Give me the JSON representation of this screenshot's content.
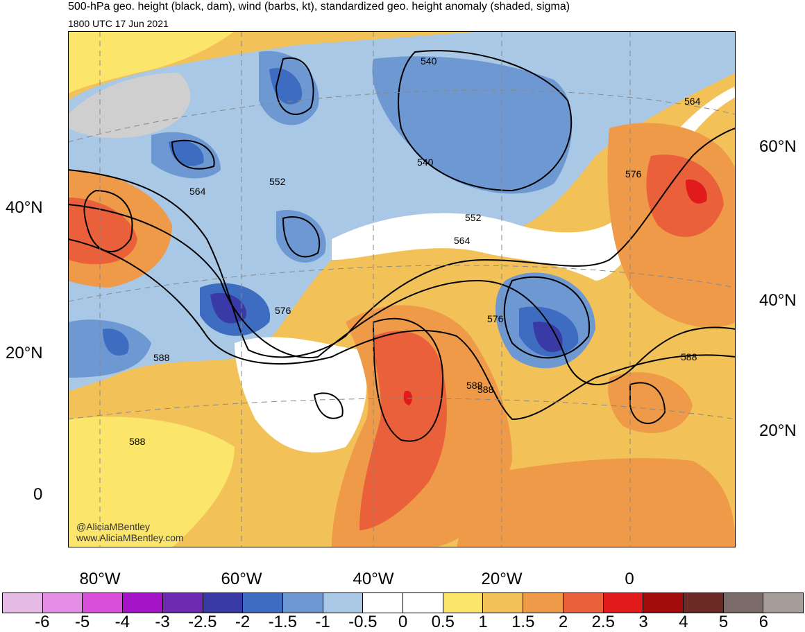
{
  "title": "500-hPa geo. height (black, dam), wind (barbs, kt), standardized geo. height anomaly (shaded, sigma)",
  "subtitle": "1800 UTC 17 Jun 2021",
  "credits": [
    "@AliciaMBentley",
    "www.AliciaMBentley.com"
  ],
  "lat_labels_left": [
    "40°N",
    "20°N",
    "0"
  ],
  "lat_labels_right": [
    "60°N",
    "40°N",
    "20°N"
  ],
  "lon_labels": [
    "80°W",
    "60°W",
    "40°W",
    "20°W",
    "0"
  ],
  "contour_labels": [
    "540",
    "540",
    "552",
    "552",
    "564",
    "564",
    "564",
    "576",
    "576",
    "576",
    "588",
    "588",
    "588",
    "588",
    "588"
  ],
  "colorbar": {
    "colors": [
      "#e6bce6",
      "#e58ee5",
      "#d94fd9",
      "#a415c8",
      "#6d2bb1",
      "#3a3aa6",
      "#3e6cc0",
      "#6e98d2",
      "#a8c8e6",
      "#ffffff",
      "#ffffff",
      "#fbe56b",
      "#f2c158",
      "#ee9a48",
      "#e9603a",
      "#e11b1b",
      "#a40b0b",
      "#6e2a24",
      "#7a6a68",
      "#a69c9a"
    ],
    "labels": [
      "-6",
      "-5",
      "-4",
      "-3",
      "-2.5",
      "-2",
      "-1.5",
      "-1",
      "-0.5",
      "0",
      "0.5",
      "1",
      "1.5",
      "2",
      "2.5",
      "3",
      "4",
      "5",
      "6"
    ]
  }
}
